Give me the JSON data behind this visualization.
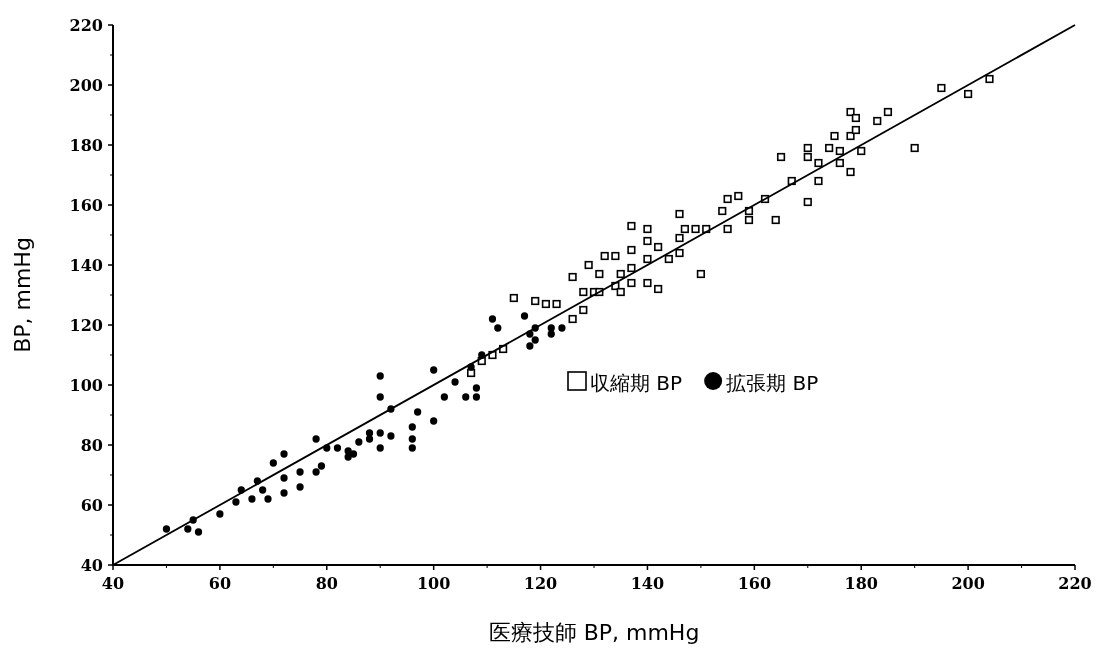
{
  "chart_data": {
    "type": "scatter",
    "xlabel": "医療技師 BP, mmHg",
    "ylabel": "BP, mmHg",
    "xlim": [
      40,
      220
    ],
    "ylim": [
      40,
      220
    ],
    "xticks": [
      40,
      60,
      80,
      100,
      120,
      140,
      160,
      180,
      200,
      220
    ],
    "yticks": [
      40,
      60,
      80,
      100,
      120,
      140,
      160,
      180,
      200,
      220
    ],
    "grid": false,
    "legend": "right",
    "series": [
      {
        "name": "収縮期 BP",
        "color": "#000000",
        "marker": "square",
        "x": [
          115,
          119,
          121,
          123,
          126,
          126,
          128,
          128,
          129,
          130,
          131,
          131,
          134,
          135,
          135,
          137,
          132,
          134,
          137,
          137,
          140,
          140,
          140,
          137,
          140,
          142,
          142,
          144,
          146,
          146,
          146,
          147,
          149,
          150,
          151,
          154,
          155,
          155,
          157,
          159,
          159,
          162,
          164,
          165,
          167,
          170,
          170,
          170,
          172,
          172,
          174,
          175,
          176,
          178,
          176,
          178,
          179,
          180,
          178,
          179,
          183,
          185,
          190,
          195,
          200,
          204,
          107,
          109,
          111,
          113
        ],
        "values": [
          129,
          128,
          127,
          127,
          136,
          122,
          125,
          131,
          140,
          131,
          137,
          131,
          133,
          131,
          137,
          153,
          143,
          143,
          145,
          139,
          142,
          152,
          148,
          134,
          134,
          146,
          132,
          142,
          157,
          144,
          149,
          152,
          152,
          137,
          152,
          158,
          152,
          162,
          163,
          155,
          158,
          162,
          155,
          176,
          168,
          161,
          179,
          176,
          174,
          168,
          179,
          183,
          178,
          171,
          174,
          183,
          185,
          178,
          191,
          189,
          188,
          191,
          179,
          199,
          197,
          202,
          104,
          108,
          110,
          112
        ]
      },
      {
        "name": "拡張期 BP",
        "color": "#000000",
        "marker": "circle",
        "x": [
          50,
          54,
          55,
          56,
          60,
          63,
          64,
          66,
          67,
          68,
          69,
          70,
          72,
          72,
          72,
          75,
          75,
          78,
          78,
          79,
          80,
          82,
          84,
          84,
          85,
          86,
          88,
          90,
          90,
          90,
          90,
          92,
          96,
          96,
          96,
          100,
          100,
          102,
          106,
          108,
          108,
          111,
          88,
          92,
          97,
          104,
          117,
          112,
          118,
          118,
          119,
          119,
          122,
          122,
          124,
          107,
          109
        ],
        "values": [
          52,
          52,
          55,
          51,
          57,
          61,
          65,
          62,
          68,
          65,
          62,
          74,
          77,
          69,
          64,
          71,
          66,
          82,
          71,
          73,
          79,
          79,
          78,
          76,
          77,
          81,
          84,
          103,
          96,
          79,
          84,
          83,
          86,
          82,
          79,
          105,
          88,
          96,
          96,
          96,
          99,
          122,
          82,
          92,
          91,
          101,
          123,
          119,
          117,
          113,
          119,
          115,
          119,
          117,
          119,
          106,
          110
        ]
      },
      {
        "type": "line",
        "color": "#000000",
        "marker": "none",
        "x": [
          40,
          220
        ],
        "values": [
          40,
          220
        ]
      }
    ]
  }
}
